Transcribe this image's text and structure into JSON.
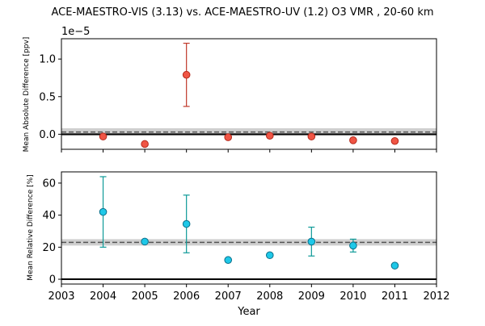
{
  "figure": {
    "title": "ACE-MAESTRO-VIS (3.13) vs. ACE-MAESTRO-UV (1.2) O3 VMR , 20-60 km"
  },
  "chart_data": [
    {
      "type": "scatter",
      "panel": "top",
      "title": "",
      "xlabel": "",
      "ylabel": "Mean Absolute Difference [ppv]",
      "offset_text": "1e−5",
      "xlim": [
        2003,
        2012
      ],
      "ylim": [
        -0.2,
        1.27
      ],
      "yticks": [
        0.0,
        0.5,
        1.0
      ],
      "ytick_labels": [
        "0.0",
        "0.5",
        "1.0"
      ],
      "xtick_labels_shown": false,
      "x": [
        2004,
        2005,
        2006,
        2007,
        2008,
        2009,
        2010,
        2011
      ],
      "values": [
        -0.03,
        -0.13,
        0.79,
        -0.04,
        -0.02,
        -0.03,
        -0.08,
        -0.09
      ],
      "error": [
        null,
        null,
        0.42,
        null,
        null,
        null,
        null,
        null
      ],
      "mean_line": 0.03,
      "band": [
        -0.02,
        0.08
      ],
      "zero_line": 0,
      "marker_color": "#f05545",
      "edge_color": "#b52a1c",
      "error_color": "#c0392b",
      "grid": false
    },
    {
      "type": "scatter",
      "panel": "bottom",
      "title": "",
      "xlabel": "Year",
      "ylabel": "Mean Relative Difference [%]",
      "xlim": [
        2003,
        2012
      ],
      "ylim": [
        -3,
        67
      ],
      "yticks": [
        0,
        20,
        40,
        60
      ],
      "ytick_labels": [
        "0",
        "20",
        "40",
        "60"
      ],
      "xticks": [
        2003,
        2004,
        2005,
        2006,
        2007,
        2008,
        2009,
        2010,
        2011,
        2012
      ],
      "xtick_labels": [
        "2003",
        "2004",
        "2005",
        "2006",
        "2007",
        "2008",
        "2009",
        "2010",
        "2011",
        "2012"
      ],
      "x": [
        2004,
        2005,
        2006,
        2007,
        2008,
        2009,
        2010,
        2011
      ],
      "values": [
        42,
        23.5,
        34.5,
        12,
        15,
        23.5,
        21,
        8.5
      ],
      "error": [
        22,
        null,
        18,
        null,
        null,
        9,
        4,
        null
      ],
      "mean_line": 23,
      "band": [
        21,
        25
      ],
      "zero_line": 0,
      "marker_color": "#1ec8e8",
      "edge_color": "#0a6f8a",
      "error_color": "#0e9a98",
      "grid": false
    }
  ]
}
